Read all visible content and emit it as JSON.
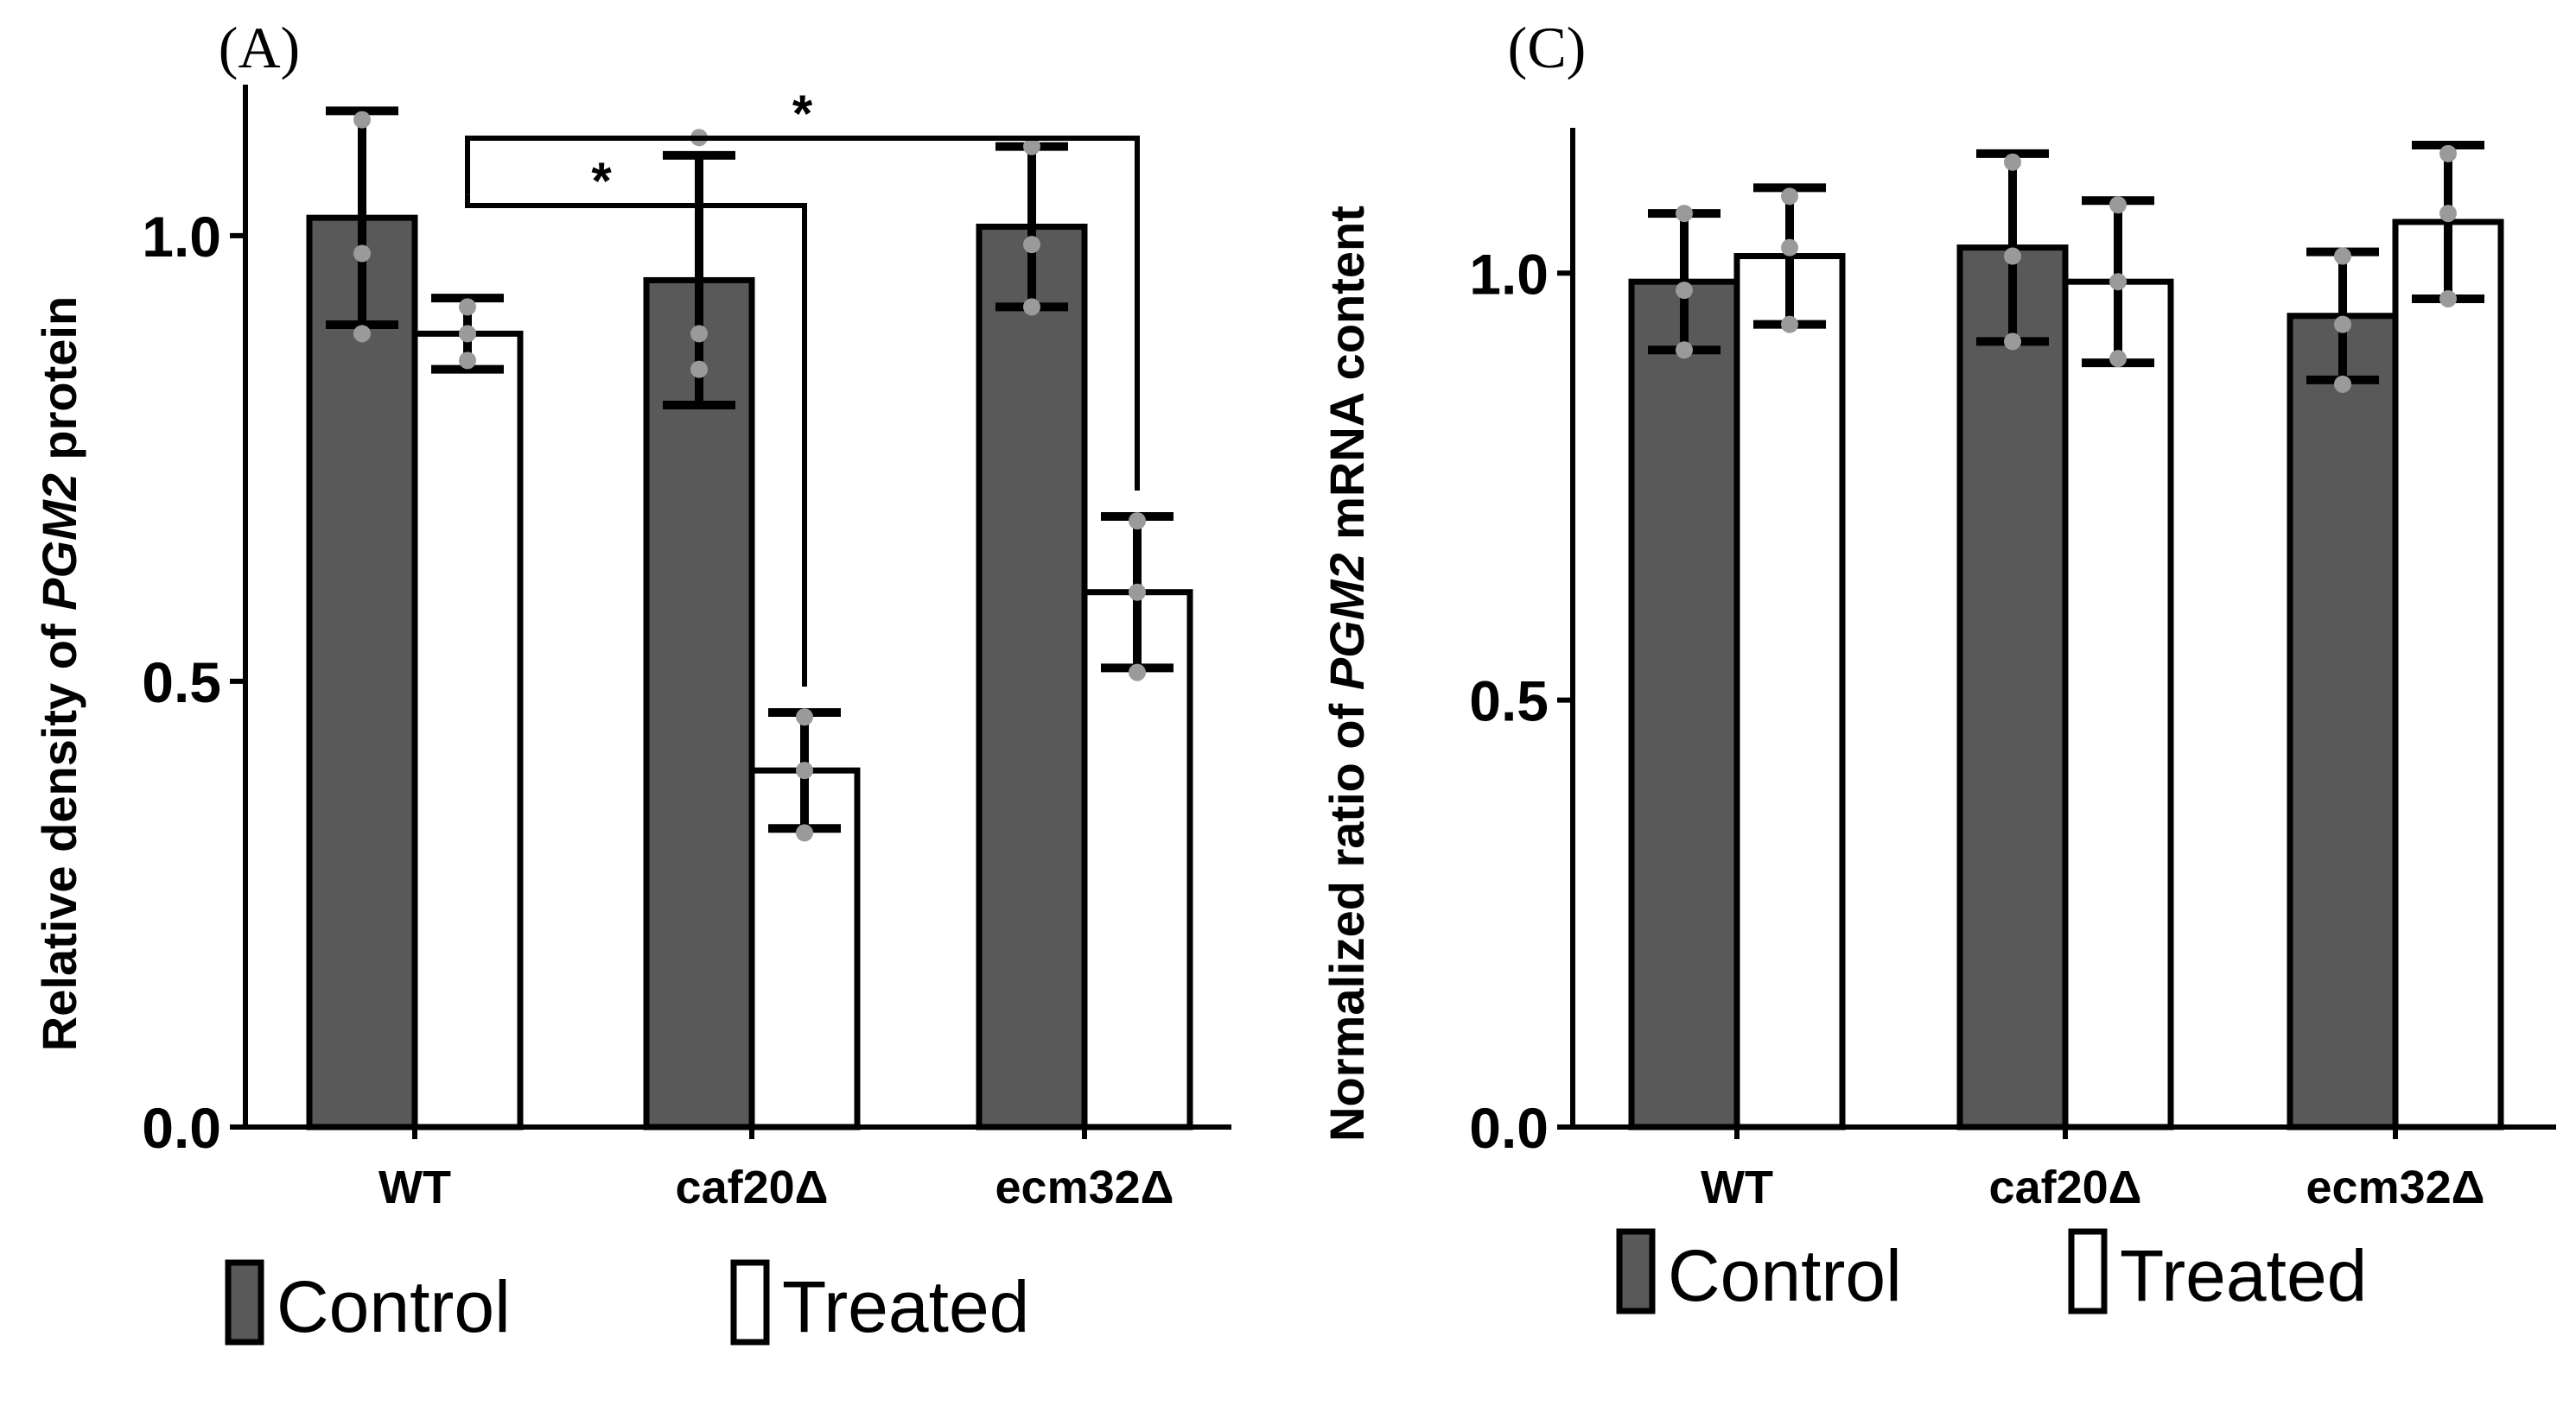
{
  "colors": {
    "control": "#595959",
    "treated": "#ffffff",
    "axis": "#000000",
    "point": "#9a9a9a"
  },
  "chart_data": [
    {
      "panel": "(A)",
      "type": "bar",
      "title": "",
      "xlabel": "",
      "ylabel_prefix": "Relative density of ",
      "ylabel_gene": "PGM2",
      "ylabel_suffix": " protein",
      "ylim": [
        0,
        1.15
      ],
      "yticks": [
        0.0,
        0.5,
        1.0
      ],
      "ytick_labels": [
        "0.0",
        "0.5",
        "1.0"
      ],
      "categories": [
        "WT",
        "caf20Δ",
        "ecm32Δ"
      ],
      "series": [
        {
          "name": "Control",
          "values": [
            1.02,
            0.95,
            1.01
          ],
          "errors": [
            0.12,
            0.14,
            0.09
          ],
          "points": [
            [
              1.13,
              0.98,
              0.89
            ],
            [
              1.11,
              0.89,
              0.85
            ],
            [
              1.1,
              0.99,
              0.92
            ]
          ]
        },
        {
          "name": "Treated",
          "values": [
            0.89,
            0.4,
            0.6
          ],
          "errors": [
            0.04,
            0.065,
            0.085
          ],
          "points": [
            [
              0.92,
              0.89,
              0.86
            ],
            [
              0.46,
              0.4,
              0.33
            ],
            [
              0.68,
              0.6,
              0.51
            ]
          ]
        }
      ],
      "significance": [
        {
          "label": "*",
          "from": "WT Treated",
          "to": "caf20Δ Treated"
        },
        {
          "label": "*",
          "from": "WT Treated",
          "to": "ecm32Δ Treated"
        }
      ],
      "legend": [
        "Control",
        "Treated"
      ],
      "legend_position": "bottom"
    },
    {
      "panel": "(C)",
      "type": "bar",
      "title": "",
      "xlabel": "",
      "ylabel_prefix": "Normalized ratio of ",
      "ylabel_gene": "PGM2",
      "ylabel_suffix": " mRNA content",
      "ylim": [
        0,
        1.15
      ],
      "yticks": [
        0.0,
        0.5,
        1.0
      ],
      "ytick_labels": [
        "0.0",
        "0.5",
        "1.0"
      ],
      "categories": [
        "WT",
        "caf20Δ",
        "ecm32Δ"
      ],
      "series": [
        {
          "name": "Control",
          "values": [
            0.99,
            1.03,
            0.95
          ],
          "errors": [
            0.08,
            0.11,
            0.075
          ],
          "points": [
            [
              1.07,
              0.98,
              0.91
            ],
            [
              1.13,
              1.02,
              0.92
            ],
            [
              1.02,
              0.94,
              0.87
            ]
          ]
        },
        {
          "name": "Treated",
          "values": [
            1.02,
            0.99,
            1.06
          ],
          "errors": [
            0.08,
            0.095,
            0.09
          ],
          "points": [
            [
              1.09,
              1.03,
              0.94
            ],
            [
              1.08,
              0.99,
              0.9
            ],
            [
              1.14,
              1.07,
              0.97
            ]
          ]
        }
      ],
      "significance": [],
      "legend": [
        "Control",
        "Treated"
      ],
      "legend_position": "bottom"
    }
  ]
}
